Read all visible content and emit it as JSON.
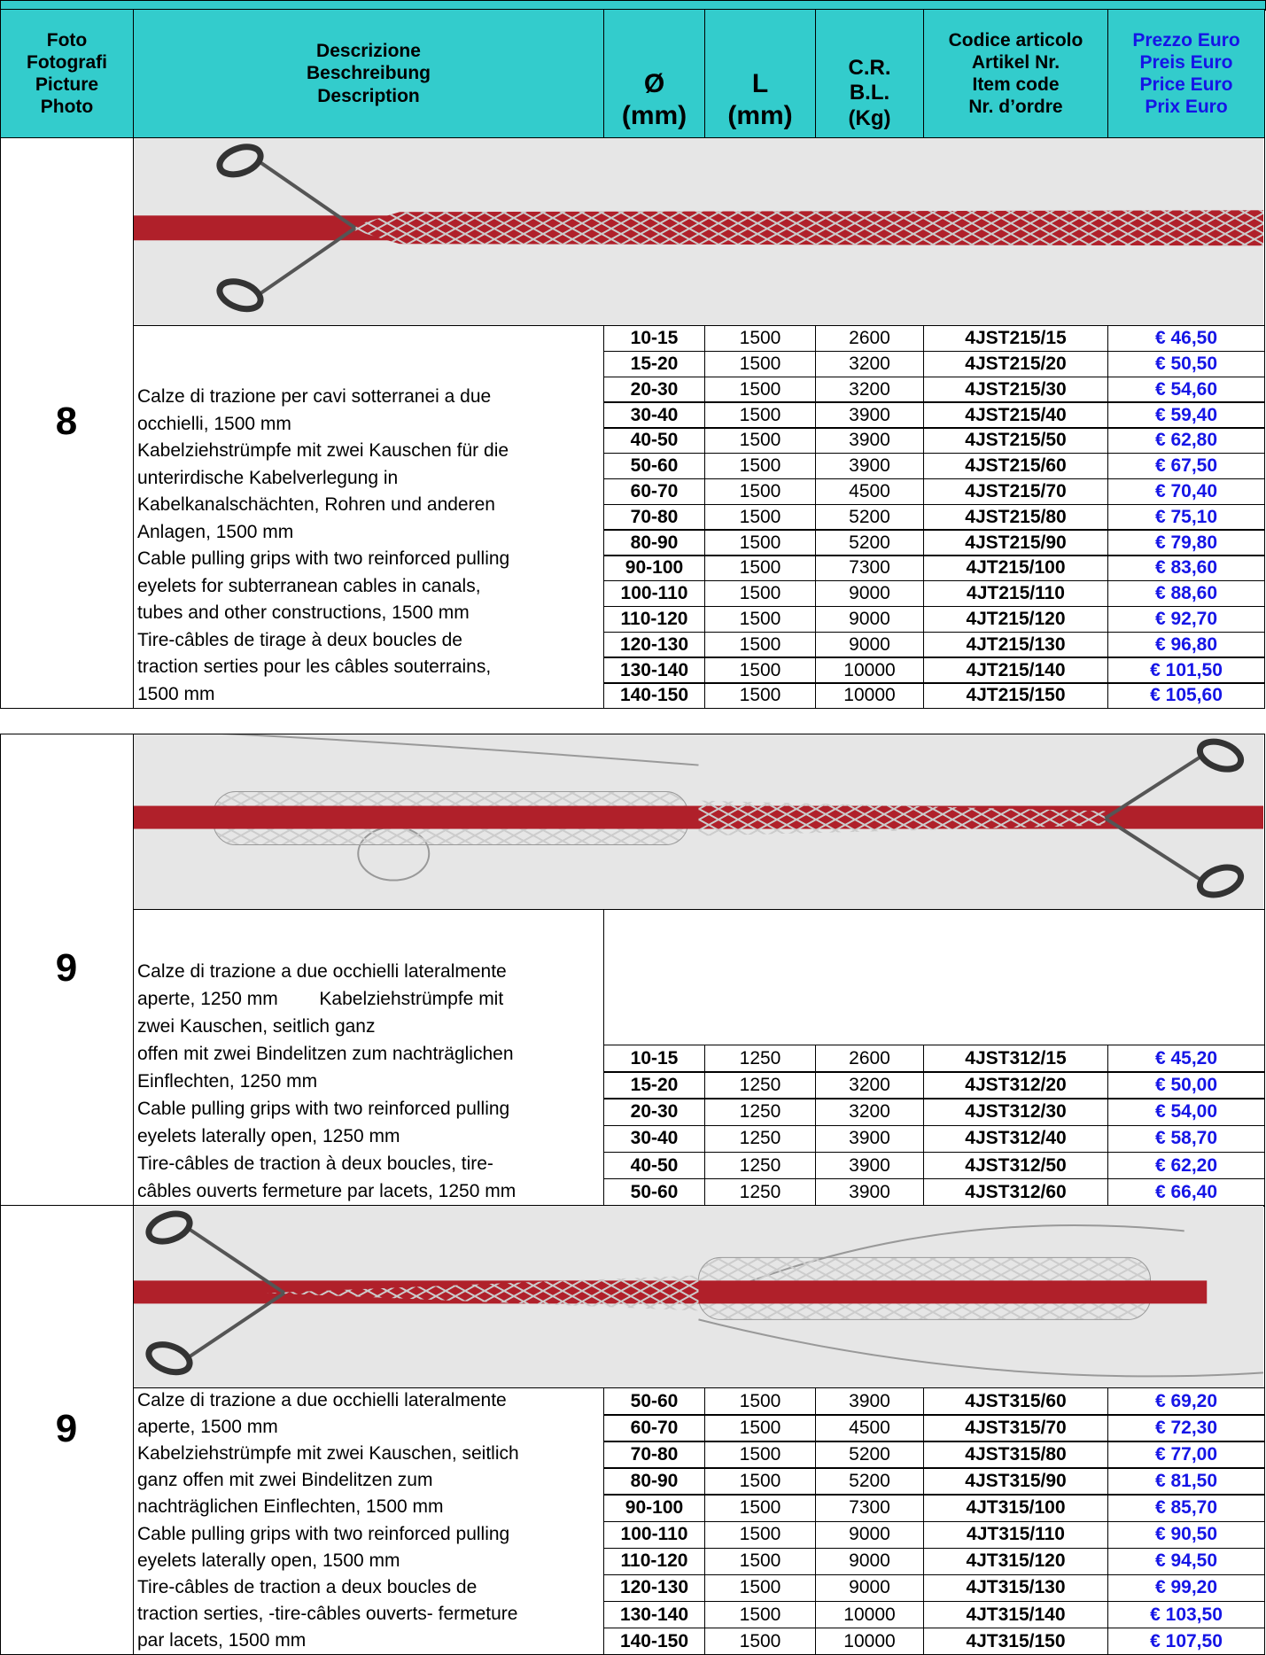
{
  "header": {
    "photo": [
      "Foto",
      "Fotografi",
      "Picture",
      "Photo"
    ],
    "description": [
      "Descrizione",
      "Beschreibung",
      "Description"
    ],
    "diameter": [
      "Ø",
      "(mm)"
    ],
    "length": [
      "L",
      "(mm)"
    ],
    "breaking_load": [
      "C.R.",
      "B.L.",
      "(Kg)"
    ],
    "item_code": [
      "Codice articolo",
      "Artikel Nr.",
      "Item code",
      "Nr. d’ordre"
    ],
    "price": [
      "Prezzo Euro",
      "Preis Euro",
      "Price Euro",
      "Prix Euro"
    ]
  },
  "sections": [
    {
      "number": "8",
      "description": [
        "Calze di trazione per cavi sotterranei a due",
        "occhielli, 1500 mm",
        "Kabelziehstrümpfe mit zwei Kauschen für die",
        "unterirdische Kabelverlegung in",
        "Kabelkanalschächten, Rohren und anderen",
        "Anlagen, 1500 mm",
        "Cable pulling grips with two reinforced pulling",
        "eyelets for subterranean cables in canals,",
        "tubes and other constructions, 1500 mm",
        "Tire-câbles de tirage à deux boucles de",
        "traction serties pour les câbles souterrains,",
        "1500 mm"
      ],
      "rows": [
        [
          "10-15",
          "1500",
          "2600",
          "4JST215/15",
          "€ 46,50"
        ],
        [
          "15-20",
          "1500",
          "3200",
          "4JST215/20",
          "€ 50,50"
        ],
        [
          "20-30",
          "1500",
          "3200",
          "4JST215/30",
          "€ 54,60"
        ],
        [
          "30-40",
          "1500",
          "3900",
          "4JST215/40",
          "€ 59,40"
        ],
        [
          "40-50",
          "1500",
          "3900",
          "4JST215/50",
          "€ 62,80"
        ],
        [
          "50-60",
          "1500",
          "3900",
          "4JST215/60",
          "€ 67,50"
        ],
        [
          "60-70",
          "1500",
          "4500",
          "4JST215/70",
          "€ 70,40"
        ],
        [
          "70-80",
          "1500",
          "5200",
          "4JST215/80",
          "€ 75,10"
        ],
        [
          "80-90",
          "1500",
          "5200",
          "4JST215/90",
          "€ 79,80"
        ],
        [
          "90-100",
          "1500",
          "7300",
          "4JT215/100",
          "€ 83,60"
        ],
        [
          "100-110",
          "1500",
          "9000",
          "4JT215/110",
          "€ 88,60"
        ],
        [
          "110-120",
          "1500",
          "9000",
          "4JT215/120",
          "€ 92,70"
        ],
        [
          "120-130",
          "1500",
          "9000",
          "4JT215/130",
          "€ 96,80"
        ],
        [
          "130-140",
          "1500",
          "10000",
          "4JT215/140",
          "€ 101,50"
        ],
        [
          "140-150",
          "1500",
          "10000",
          "4JT215/150",
          "€ 105,60"
        ]
      ]
    },
    {
      "number": "9",
      "description": [
        "Calze di trazione a due occhielli lateralmente",
        "aperte, 1250 mm        Kabelziehstrümpfe mit",
        "zwei Kauschen, seitlich ganz",
        "offen mit zwei Bindelitzen zum nachträglichen",
        "Einflechten, 1250 mm",
        "Cable pulling grips with two reinforced pulling",
        "eyelets laterally open, 1250 mm",
        "Tire-câbles de traction à deux boucles, tire-",
        "câbles ouverts fermeture par lacets, 1250 mm"
      ],
      "rows": [
        [
          "10-15",
          "1250",
          "2600",
          "4JST312/15",
          "€ 45,20"
        ],
        [
          "15-20",
          "1250",
          "3200",
          "4JST312/20",
          "€ 50,00"
        ],
        [
          "20-30",
          "1250",
          "3200",
          "4JST312/30",
          "€ 54,00"
        ],
        [
          "30-40",
          "1250",
          "3900",
          "4JST312/40",
          "€ 58,70"
        ],
        [
          "40-50",
          "1250",
          "3900",
          "4JST312/50",
          "€ 62,20"
        ],
        [
          "50-60",
          "1250",
          "3900",
          "4JST312/60",
          "€ 66,40"
        ]
      ]
    },
    {
      "number": "9",
      "description": [
        "Calze di trazione a due occhielli lateralmente",
        "aperte, 1500 mm",
        "Kabelziehstrümpfe mit zwei Kauschen, seitlich",
        "ganz offen mit zwei Bindelitzen zum",
        "nachträglichen Einflechten, 1500 mm",
        "Cable pulling grips with two reinforced pulling",
        "eyelets laterally open, 1500 mm",
        "Tire-câbles de traction a deux boucles de",
        "traction serties, -tire-câbles ouverts- fermeture",
        "par lacets, 1500 mm"
      ],
      "rows": [
        [
          "50-60",
          "1500",
          "3900",
          "4JST315/60",
          "€ 69,20"
        ],
        [
          "60-70",
          "1500",
          "4500",
          "4JST315/70",
          "€ 72,30"
        ],
        [
          "70-80",
          "1500",
          "5200",
          "4JST315/80",
          "€ 77,00"
        ],
        [
          "80-90",
          "1500",
          "5200",
          "4JST315/90",
          "€ 81,50"
        ],
        [
          "90-100",
          "1500",
          "7300",
          "4JT315/100",
          "€ 85,70"
        ],
        [
          "100-110",
          "1500",
          "9000",
          "4JT315/110",
          "€ 90,50"
        ],
        [
          "110-120",
          "1500",
          "9000",
          "4JT315/120",
          "€ 94,50"
        ],
        [
          "120-130",
          "1500",
          "9000",
          "4JT315/130",
          "€ 99,20"
        ],
        [
          "130-140",
          "1500",
          "10000",
          "4JT315/140",
          "€ 103,50"
        ],
        [
          "140-150",
          "1500",
          "10000",
          "4JT315/150",
          "€ 107,50"
        ]
      ]
    }
  ]
}
